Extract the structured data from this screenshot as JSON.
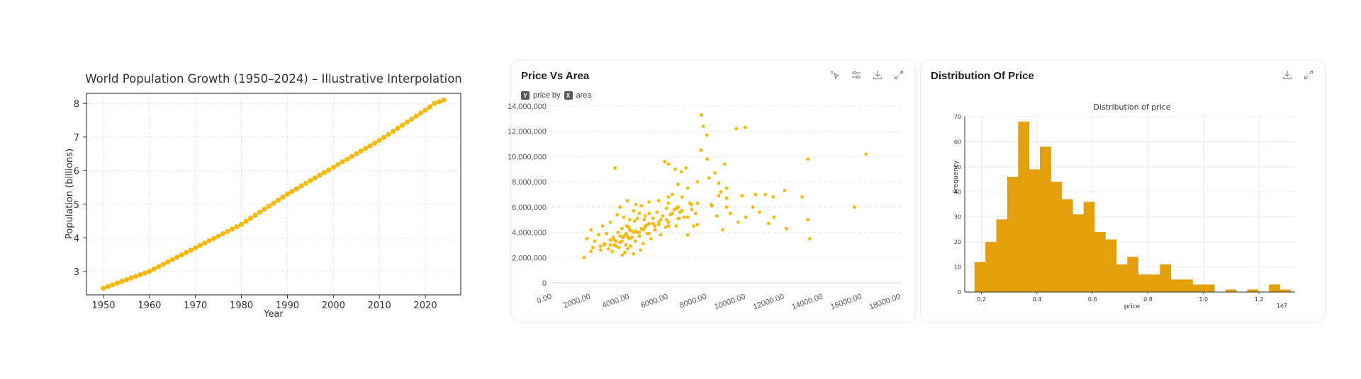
{
  "population_chart": {
    "title": "World Population Growth (1950–2024) – Illustrative Interpolation",
    "xlabel": "Year",
    "ylabel": "Population (billions)",
    "color": "#F5B80B"
  },
  "scatter_card": {
    "title": "Price Vs Area",
    "y_chip": "Y",
    "y_var": "price by",
    "x_chip": "X",
    "x_var": "area",
    "color": "#F5B80B",
    "icons": [
      "sparkle-pointer-icon",
      "sliders-icon",
      "download-icon",
      "expand-icon"
    ]
  },
  "hist_card": {
    "title": "Distribution Of Price",
    "color": "#E3A00B",
    "icons": [
      "download-icon",
      "expand-icon"
    ]
  },
  "chart_data": [
    {
      "type": "line",
      "title": "World Population Growth (1950–2024) – Illustrative Interpolation",
      "xlabel": "Year",
      "ylabel": "Population (billions)",
      "xlim": [
        1946.3,
        2027.7
      ],
      "ylim": [
        2.3,
        8.3
      ],
      "xticks": [
        1950,
        1960,
        1970,
        1980,
        1990,
        2000,
        2010,
        2020
      ],
      "yticks": [
        3,
        4,
        5,
        6,
        7,
        8
      ],
      "grid": true,
      "series": [
        {
          "x": [
            1950,
            1960,
            1970,
            1980,
            1990,
            2000,
            2010,
            2020,
            2022,
            2023,
            2024
          ],
          "y": [
            2.5,
            3.0,
            3.7,
            4.4,
            5.3,
            6.1,
            6.9,
            7.8,
            8.0,
            8.05,
            8.1
          ]
        }
      ]
    },
    {
      "type": "scatter",
      "title": "Price Vs Area",
      "xlabel": "area",
      "ylabel": "price",
      "xlim": [
        0,
        18000
      ],
      "ylim": [
        0,
        14000000
      ],
      "xticks": [
        "0.00",
        "2000.00",
        "4000.00",
        "6000.00",
        "8000.00",
        "10000.00",
        "12000.00",
        "14000.00",
        "16000.00",
        "18000.00"
      ],
      "yticks": [
        "0",
        "2,000,000",
        "4,000,000",
        "6,000,000",
        "8,000,000",
        "10,000,000",
        "12,000,000",
        "14,000,000"
      ],
      "grid": true,
      "series": [
        {
          "x": [
            1650,
            1800,
            2000,
            2100,
            2200,
            2400,
            2500,
            2600,
            2700,
            2800,
            2900,
            3000,
            3000,
            3100,
            3150,
            3200,
            3240,
            3300,
            3360,
            3400,
            3450,
            3500,
            3500,
            3600,
            3600,
            3620,
            3650,
            3700,
            3750,
            3800,
            3840,
            3850,
            3880,
            3900,
            3960,
            4000,
            4000,
            4000,
            4040,
            4100,
            4120,
            4200,
            4200,
            4260,
            4300,
            4320,
            4400,
            4400,
            4500,
            4500,
            4560,
            4600,
            4600,
            4700,
            4750,
            4800,
            4800,
            4900,
            5000,
            5000,
            5000,
            5100,
            5200,
            5300,
            5400,
            5500,
            5500,
            5600,
            5700,
            5800,
            5850,
            5900,
            6000,
            6000,
            6000,
            6000,
            6100,
            6200,
            6300,
            6350,
            6400,
            6500,
            6500,
            6550,
            6600,
            6660,
            6700,
            6800,
            6900,
            7000,
            7000,
            7200,
            7300,
            7400,
            7500,
            7500,
            7680,
            7700,
            7800,
            7980,
            8000,
            8100,
            8250,
            8400,
            8500,
            8600,
            8800,
            8900,
            9000,
            9000,
            9200,
            9500,
            9600,
            9800,
            9960,
            10000,
            10360,
            10500,
            10700,
            11000,
            11175,
            11410,
            11440,
            12000,
            12090,
            12900,
            13200,
            13200,
            13300,
            15600,
            16200,
            2000,
            3000,
            4000,
            5000,
            6000,
            7000,
            3500,
            4500,
            5500,
            6500,
            2500,
            3700,
            4300,
            4800,
            5200,
            6200,
            7200,
            8200,
            9000,
            2700,
            3300,
            3900,
            4700,
            5300,
            5900,
            6700,
            7500,
            8700,
            3200,
            3800,
            4200,
            4900,
            5600,
            6400,
            7100,
            8600
          ],
          "y": [
            2000000,
            3500000,
            4200000,
            2800000,
            3300000,
            3800000,
            2600000,
            4500000,
            3100000,
            3900000,
            2700000,
            3400000,
            4800000,
            2500000,
            3600000,
            3000000,
            9100000,
            2900000,
            5400000,
            4000000,
            2800000,
            3700000,
            6000000,
            3300000,
            4300000,
            2200000,
            3600000,
            5200000,
            2400000,
            3000000,
            4500000,
            3800000,
            6500000,
            2700000,
            4400000,
            3500000,
            4200000,
            5000000,
            2900000,
            4100000,
            3600000,
            5700000,
            2300000,
            4900000,
            3300000,
            6200000,
            4000000,
            5100000,
            3700000,
            5500000,
            2600000,
            4300000,
            6100000,
            3100000,
            5000000,
            4500000,
            5300000,
            3900000,
            4700000,
            5500000,
            6400000,
            3500000,
            5100000,
            4200000,
            5600000,
            4800000,
            6500000,
            3800000,
            5300000,
            9600000,
            4400000,
            5900000,
            4800000,
            6300000,
            6800000,
            9400000,
            5400000,
            7000000,
            5800000,
            9000000,
            4500000,
            6000000,
            7800000,
            5100000,
            5600000,
            8800000,
            6800000,
            5200000,
            9100000,
            3800000,
            7500000,
            6200000,
            4500000,
            5500000,
            4600000,
            8000000,
            10500000,
            13300000,
            12400000,
            11700000,
            9800000,
            8300000,
            6100000,
            8700000,
            5300000,
            7900000,
            4200000,
            9400000,
            6000000,
            7500000,
            5500000,
            12200000,
            4800000,
            6900000,
            12300000,
            5200000,
            6000000,
            7000000,
            5600000,
            7000000,
            4700000,
            6800000,
            5200000,
            7300000,
            4300000,
            6800000,
            5000000,
            9800000,
            3500000,
            6000000,
            10200000,
            2500000,
            3000000,
            3500000,
            3900000,
            4500000,
            5200000,
            3200000,
            4000000,
            4600000,
            5100000,
            2900000,
            3700000,
            4100000,
            4400000,
            4700000,
            5500000,
            5800000,
            6200000,
            6700000,
            3000000,
            3300000,
            3600000,
            4200000,
            4500000,
            5000000,
            5700000,
            6300000,
            7200000,
            3400000,
            3900000,
            4000000,
            4600000,
            5000000,
            5900000,
            6300000,
            6900000
          ]
        }
      ]
    },
    {
      "type": "bar",
      "title": "Distribution of price",
      "xlabel": "price",
      "ylabel": "Frequency",
      "x_offset_label": "1e7",
      "xlim": [
        0.14,
        1.33
      ],
      "ylim": [
        0,
        70
      ],
      "xticks": [
        "0.2",
        "0.4",
        "0.6",
        "0.8",
        "1.0",
        "1.2"
      ],
      "yticks": [
        "0",
        "10",
        "20",
        "30",
        "40",
        "50",
        "60",
        "70"
      ],
      "grid": true,
      "bin_width": 0.0393,
      "bin_starts": [
        0.175,
        0.2143,
        0.2536,
        0.2929,
        0.3322,
        0.3715,
        0.4108,
        0.4501,
        0.4894,
        0.5287,
        0.568,
        0.6073,
        0.6466,
        0.6859,
        0.7252,
        0.7645,
        0.8038,
        0.8431,
        0.8824,
        0.9217,
        0.961,
        1.0003,
        1.0396,
        1.0789,
        1.1182,
        1.1575,
        1.1968,
        1.2361,
        1.2754
      ],
      "values": [
        12,
        20,
        29,
        46,
        68,
        49,
        58,
        44,
        37,
        31,
        36,
        24,
        21,
        11,
        14,
        7,
        7,
        11,
        5,
        5,
        3,
        3,
        0,
        1,
        0,
        1,
        0,
        3,
        1
      ]
    }
  ]
}
